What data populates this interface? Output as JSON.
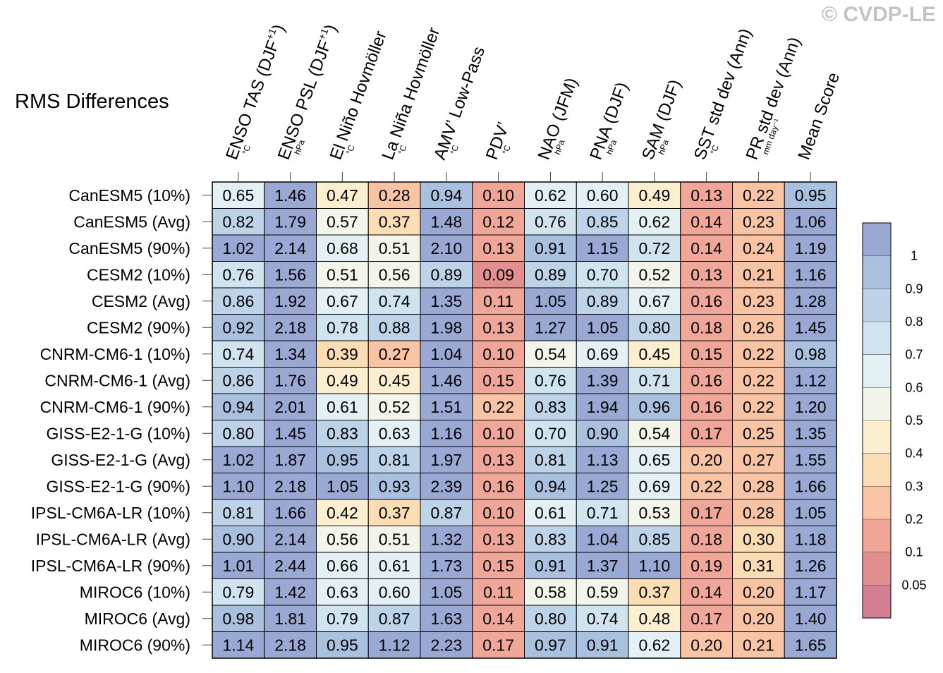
{
  "watermark": "© CVDP-LE",
  "chart_data": {
    "type": "heatmap",
    "title": "RMS Differences",
    "columns": [
      {
        "label": "ENSO TAS (DJF",
        "sup": "+1",
        "close": ")",
        "unit": "°C"
      },
      {
        "label": "ENSO PSL (DJF",
        "sup": "+1",
        "close": ")",
        "unit": "hPa"
      },
      {
        "label": "El Niño Hovmöller",
        "sup": "",
        "close": "",
        "unit": "°C"
      },
      {
        "label": "La Niña Hovmöller",
        "sup": "",
        "close": "",
        "unit": "°C"
      },
      {
        "label": "AMV’ Low-Pass",
        "sup": "",
        "close": "",
        "unit": "°C"
      },
      {
        "label": "PDV’",
        "sup": "",
        "close": "",
        "unit": "°C"
      },
      {
        "label": "NAO (JFM)",
        "sup": "",
        "close": "",
        "unit": "hPa"
      },
      {
        "label": "PNA (DJF)",
        "sup": "",
        "close": "",
        "unit": "hPa"
      },
      {
        "label": "SAM (DJF)",
        "sup": "",
        "close": "",
        "unit": "hPa"
      },
      {
        "label": "SST std dev (Ann)",
        "sup": "",
        "close": "",
        "unit": "°C"
      },
      {
        "label": "PR std dev (Ann)",
        "sup": "",
        "close": "",
        "unit": "mm day⁻¹"
      },
      {
        "label": "Mean Score",
        "sup": "",
        "close": "",
        "unit": ""
      }
    ],
    "rows": [
      "CanESM5 (10%)",
      "CanESM5 (Avg)",
      "CanESM5 (90%)",
      "CESM2 (10%)",
      "CESM2 (Avg)",
      "CESM2 (90%)",
      "CNRM-CM6-1 (10%)",
      "CNRM-CM6-1 (Avg)",
      "CNRM-CM6-1 (90%)",
      "GISS-E2-1-G (10%)",
      "GISS-E2-1-G (Avg)",
      "GISS-E2-1-G (90%)",
      "IPSL-CM6A-LR (10%)",
      "IPSL-CM6A-LR (Avg)",
      "IPSL-CM6A-LR (90%)",
      "MIROC6 (10%)",
      "MIROC6 (Avg)",
      "MIROC6 (90%)"
    ],
    "values": [
      [
        "0.65",
        "1.46",
        "0.47",
        "0.28",
        "0.94",
        "0.10",
        "0.62",
        "0.60",
        "0.49",
        "0.13",
        "0.22",
        "0.95"
      ],
      [
        "0.82",
        "1.79",
        "0.57",
        "0.37",
        "1.48",
        "0.12",
        "0.76",
        "0.85",
        "0.62",
        "0.14",
        "0.23",
        "1.06"
      ],
      [
        "1.02",
        "2.14",
        "0.68",
        "0.51",
        "2.10",
        "0.13",
        "0.91",
        "1.15",
        "0.72",
        "0.14",
        "0.24",
        "1.19"
      ],
      [
        "0.76",
        "1.56",
        "0.51",
        "0.56",
        "0.89",
        "0.09",
        "0.89",
        "0.70",
        "0.52",
        "0.13",
        "0.21",
        "1.16"
      ],
      [
        "0.86",
        "1.92",
        "0.67",
        "0.74",
        "1.35",
        "0.11",
        "1.05",
        "0.89",
        "0.67",
        "0.16",
        "0.23",
        "1.28"
      ],
      [
        "0.92",
        "2.18",
        "0.78",
        "0.88",
        "1.98",
        "0.13",
        "1.27",
        "1.05",
        "0.80",
        "0.18",
        "0.26",
        "1.45"
      ],
      [
        "0.74",
        "1.34",
        "0.39",
        "0.27",
        "1.04",
        "0.10",
        "0.54",
        "0.69",
        "0.45",
        "0.15",
        "0.22",
        "0.98"
      ],
      [
        "0.86",
        "1.76",
        "0.49",
        "0.45",
        "1.46",
        "0.15",
        "0.76",
        "1.39",
        "0.71",
        "0.16",
        "0.22",
        "1.12"
      ],
      [
        "0.94",
        "2.01",
        "0.61",
        "0.52",
        "1.51",
        "0.22",
        "0.83",
        "1.94",
        "0.96",
        "0.16",
        "0.22",
        "1.20"
      ],
      [
        "0.80",
        "1.45",
        "0.83",
        "0.63",
        "1.16",
        "0.10",
        "0.70",
        "0.90",
        "0.54",
        "0.17",
        "0.25",
        "1.35"
      ],
      [
        "1.02",
        "1.87",
        "0.95",
        "0.81",
        "1.97",
        "0.13",
        "0.81",
        "1.13",
        "0.65",
        "0.20",
        "0.27",
        "1.55"
      ],
      [
        "1.10",
        "2.18",
        "1.05",
        "0.93",
        "2.39",
        "0.16",
        "0.94",
        "1.25",
        "0.69",
        "0.22",
        "0.28",
        "1.66"
      ],
      [
        "0.81",
        "1.66",
        "0.42",
        "0.37",
        "0.87",
        "0.10",
        "0.61",
        "0.71",
        "0.53",
        "0.17",
        "0.28",
        "1.05"
      ],
      [
        "0.90",
        "2.14",
        "0.56",
        "0.51",
        "1.32",
        "0.13",
        "0.83",
        "1.04",
        "0.85",
        "0.18",
        "0.30",
        "1.18"
      ],
      [
        "1.01",
        "2.44",
        "0.66",
        "0.61",
        "1.73",
        "0.15",
        "0.91",
        "1.37",
        "1.10",
        "0.19",
        "0.31",
        "1.26"
      ],
      [
        "0.79",
        "1.42",
        "0.63",
        "0.60",
        "1.05",
        "0.11",
        "0.58",
        "0.59",
        "0.37",
        "0.14",
        "0.20",
        "1.17"
      ],
      [
        "0.98",
        "1.81",
        "0.79",
        "0.87",
        "1.63",
        "0.14",
        "0.80",
        "0.74",
        "0.48",
        "0.17",
        "0.20",
        "1.40"
      ],
      [
        "1.14",
        "2.18",
        "0.95",
        "1.12",
        "2.23",
        "0.17",
        "0.97",
        "0.91",
        "0.62",
        "0.20",
        "0.21",
        "1.65"
      ]
    ],
    "colorbar": {
      "levels": [
        "1",
        "0.9",
        "0.8",
        "0.7",
        "0.6",
        "0.5",
        "0.4",
        "0.3",
        "0.2",
        "0.1",
        "0.05"
      ],
      "colors": [
        "#9aa9d4",
        "#a9c0de",
        "#bdd3e7",
        "#d0e4ef",
        "#e3f1f5",
        "#f3f4ea",
        "#fcefcf",
        "#fbddb4",
        "#f8c4a4",
        "#f0a798",
        "#e48f8f",
        "#d57f95"
      ]
    }
  }
}
